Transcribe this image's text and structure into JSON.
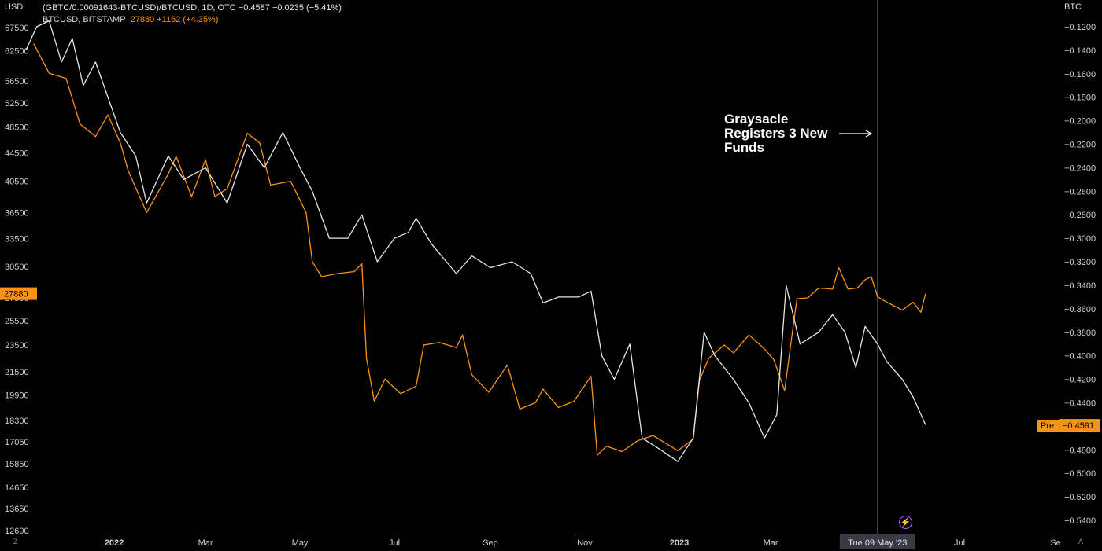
{
  "legend": {
    "line1": "(GBTC/0.00091643-BTCUSD)/BTCUSD, 1D, OTC  −0.4587  −0.0235 (−5.41%)",
    "line2_prefix": "BTCUSD, BITSTAMP",
    "line2_values": "27880  +1162 (+4.35%)"
  },
  "axes": {
    "left_unit": "USD",
    "right_unit": "BTC",
    "corner_left": "Z",
    "corner_right": "A"
  },
  "annotation": {
    "text": "Graysacle Registers 3 New Funds"
  },
  "icons": {
    "bolt": "lightning-icon"
  },
  "colors": {
    "btc_usd": "#f7931a",
    "gbtc_discount": "#e6e6e6",
    "background": "#000000"
  },
  "chart_data": {
    "type": "line",
    "x_range": [
      "2021-11-05",
      "2023-10-01"
    ],
    "y_left": {
      "unit": "USD",
      "scale": "log",
      "ticks": [
        67500,
        62500,
        56500,
        52500,
        48500,
        44500,
        40500,
        36500,
        33500,
        30500,
        27500,
        25500,
        23500,
        21500,
        19900,
        18300,
        17050,
        15850,
        14650,
        13650,
        12690
      ],
      "last_price_label": "27880"
    },
    "y_right": {
      "unit": "BTC",
      "ticks": [
        "−0.1200",
        "−0.1400",
        "−0.1600",
        "−0.1800",
        "−0.2000",
        "−0.2200",
        "−0.2400",
        "−0.2600",
        "−0.2800",
        "−0.3000",
        "−0.3200",
        "−0.3400",
        "−0.3600",
        "−0.3800",
        "−0.4000",
        "−0.4200",
        "−0.4400",
        "−0.4600",
        "−0.4800",
        "−0.5000",
        "−0.5200",
        "−0.5400"
      ],
      "last_value_label": "−0.4587",
      "pre_label": "Pre",
      "pre_value_label": "−0.4591"
    },
    "x_ticks": [
      {
        "label": "2022",
        "date": "2022-01-01",
        "bold": true
      },
      {
        "label": "Mar",
        "date": "2022-03-01"
      },
      {
        "label": "May",
        "date": "2022-05-01"
      },
      {
        "label": "Jul",
        "date": "2022-07-01"
      },
      {
        "label": "Sep",
        "date": "2022-09-01"
      },
      {
        "label": "Nov",
        "date": "2022-11-01"
      },
      {
        "label": "2023",
        "date": "2023-01-01",
        "bold": true
      },
      {
        "label": "Mar",
        "date": "2023-03-01"
      },
      {
        "label": "Jul",
        "date": "2023-07-01"
      },
      {
        "label": "Se",
        "date": "2023-09-01"
      }
    ],
    "crosshair": {
      "date": "2023-05-09",
      "label": "Tue 09 May '23"
    },
    "series": [
      {
        "name": "BTCUSD, BITSTAMP",
        "axis": "left",
        "color": "#f7931a",
        "points": [
          [
            "2021-11-10",
            64000
          ],
          [
            "2021-11-20",
            58000
          ],
          [
            "2021-12-01",
            57000
          ],
          [
            "2021-12-10",
            49000
          ],
          [
            "2021-12-20",
            47000
          ],
          [
            "2021-12-28",
            50500
          ],
          [
            "2022-01-05",
            46000
          ],
          [
            "2022-01-10",
            42000
          ],
          [
            "2022-01-22",
            36500
          ],
          [
            "2022-02-05",
            41500
          ],
          [
            "2022-02-10",
            44000
          ],
          [
            "2022-02-20",
            38500
          ],
          [
            "2022-03-01",
            43500
          ],
          [
            "2022-03-07",
            38500
          ],
          [
            "2022-03-15",
            39500
          ],
          [
            "2022-03-28",
            47500
          ],
          [
            "2022-04-05",
            46000
          ],
          [
            "2022-04-12",
            40000
          ],
          [
            "2022-04-25",
            40500
          ],
          [
            "2022-05-05",
            36500
          ],
          [
            "2022-05-09",
            31000
          ],
          [
            "2022-05-15",
            29500
          ],
          [
            "2022-05-25",
            29800
          ],
          [
            "2022-06-05",
            30000
          ],
          [
            "2022-06-10",
            30800
          ],
          [
            "2022-06-13",
            22500
          ],
          [
            "2022-06-18",
            19500
          ],
          [
            "2022-06-25",
            21000
          ],
          [
            "2022-07-05",
            20000
          ],
          [
            "2022-07-15",
            20500
          ],
          [
            "2022-07-20",
            23500
          ],
          [
            "2022-07-30",
            23700
          ],
          [
            "2022-08-10",
            23300
          ],
          [
            "2022-08-14",
            24300
          ],
          [
            "2022-08-20",
            21300
          ],
          [
            "2022-08-31",
            20100
          ],
          [
            "2022-09-12",
            22000
          ],
          [
            "2022-09-20",
            19000
          ],
          [
            "2022-09-30",
            19400
          ],
          [
            "2022-10-05",
            20300
          ],
          [
            "2022-10-15",
            19100
          ],
          [
            "2022-10-25",
            19500
          ],
          [
            "2022-11-05",
            21200
          ],
          [
            "2022-11-09",
            16300
          ],
          [
            "2022-11-15",
            16800
          ],
          [
            "2022-11-25",
            16500
          ],
          [
            "2022-12-05",
            17100
          ],
          [
            "2022-12-15",
            17400
          ],
          [
            "2022-12-31",
            16550
          ],
          [
            "2023-01-10",
            17200
          ],
          [
            "2023-01-14",
            20900
          ],
          [
            "2023-01-20",
            22500
          ],
          [
            "2023-01-30",
            23500
          ],
          [
            "2023-02-05",
            22900
          ],
          [
            "2023-02-15",
            24300
          ],
          [
            "2023-02-25",
            23200
          ],
          [
            "2023-03-03",
            22400
          ],
          [
            "2023-03-10",
            20200
          ],
          [
            "2023-03-15",
            24500
          ],
          [
            "2023-03-18",
            27400
          ],
          [
            "2023-03-25",
            27500
          ],
          [
            "2023-04-01",
            28400
          ],
          [
            "2023-04-10",
            28300
          ],
          [
            "2023-04-14",
            30400
          ],
          [
            "2023-04-20",
            28300
          ],
          [
            "2023-04-26",
            28400
          ],
          [
            "2023-05-01",
            29200
          ],
          [
            "2023-05-05",
            29500
          ],
          [
            "2023-05-09",
            27600
          ],
          [
            "2023-05-15",
            27100
          ],
          [
            "2023-05-25",
            26400
          ],
          [
            "2023-06-01",
            27100
          ],
          [
            "2023-06-06",
            26200
          ],
          [
            "2023-06-09",
            27880
          ]
        ]
      },
      {
        "name": "(GBTC/0.00091643-BTCUSD)/BTCUSD",
        "axis": "right",
        "color": "#e6e6e6",
        "points": [
          [
            "2021-11-05",
            -0.14
          ],
          [
            "2021-11-12",
            -0.12
          ],
          [
            "2021-11-20",
            -0.115
          ],
          [
            "2021-11-28",
            -0.15
          ],
          [
            "2021-12-05",
            -0.13
          ],
          [
            "2021-12-12",
            -0.17
          ],
          [
            "2021-12-20",
            -0.15
          ],
          [
            "2021-12-28",
            -0.18
          ],
          [
            "2022-01-05",
            -0.21
          ],
          [
            "2022-01-15",
            -0.23
          ],
          [
            "2022-01-22",
            -0.27
          ],
          [
            "2022-02-05",
            -0.23
          ],
          [
            "2022-02-15",
            -0.25
          ],
          [
            "2022-03-01",
            -0.24
          ],
          [
            "2022-03-15",
            -0.27
          ],
          [
            "2022-03-28",
            -0.22
          ],
          [
            "2022-04-08",
            -0.24
          ],
          [
            "2022-04-20",
            -0.21
          ],
          [
            "2022-05-01",
            -0.24
          ],
          [
            "2022-05-09",
            -0.26
          ],
          [
            "2022-05-20",
            -0.3
          ],
          [
            "2022-06-01",
            -0.3
          ],
          [
            "2022-06-10",
            -0.28
          ],
          [
            "2022-06-20",
            -0.32
          ],
          [
            "2022-07-01",
            -0.3
          ],
          [
            "2022-07-10",
            -0.295
          ],
          [
            "2022-07-15",
            -0.283
          ],
          [
            "2022-07-25",
            -0.305
          ],
          [
            "2022-08-10",
            -0.33
          ],
          [
            "2022-08-20",
            -0.315
          ],
          [
            "2022-09-01",
            -0.325
          ],
          [
            "2022-09-15",
            -0.32
          ],
          [
            "2022-09-27",
            -0.33
          ],
          [
            "2022-10-05",
            -0.355
          ],
          [
            "2022-10-15",
            -0.35
          ],
          [
            "2022-10-28",
            -0.35
          ],
          [
            "2022-11-05",
            -0.345
          ],
          [
            "2022-11-12",
            -0.4
          ],
          [
            "2022-11-20",
            -0.42
          ],
          [
            "2022-11-30",
            -0.39
          ],
          [
            "2022-12-08",
            -0.47
          ],
          [
            "2022-12-20",
            -0.48
          ],
          [
            "2022-12-31",
            -0.49
          ],
          [
            "2023-01-10",
            -0.47
          ],
          [
            "2023-01-17",
            -0.38
          ],
          [
            "2023-01-24",
            -0.4
          ],
          [
            "2023-02-05",
            -0.42
          ],
          [
            "2023-02-15",
            -0.44
          ],
          [
            "2023-02-25",
            -0.47
          ],
          [
            "2023-03-05",
            -0.45
          ],
          [
            "2023-03-11",
            -0.34
          ],
          [
            "2023-03-20",
            -0.39
          ],
          [
            "2023-04-01",
            -0.38
          ],
          [
            "2023-04-10",
            -0.365
          ],
          [
            "2023-04-18",
            -0.38
          ],
          [
            "2023-04-25",
            -0.41
          ],
          [
            "2023-05-01",
            -0.375
          ],
          [
            "2023-05-09",
            -0.39
          ],
          [
            "2023-05-15",
            -0.405
          ],
          [
            "2023-05-25",
            -0.42
          ],
          [
            "2023-06-01",
            -0.435
          ],
          [
            "2023-06-09",
            -0.4587
          ]
        ]
      }
    ]
  }
}
